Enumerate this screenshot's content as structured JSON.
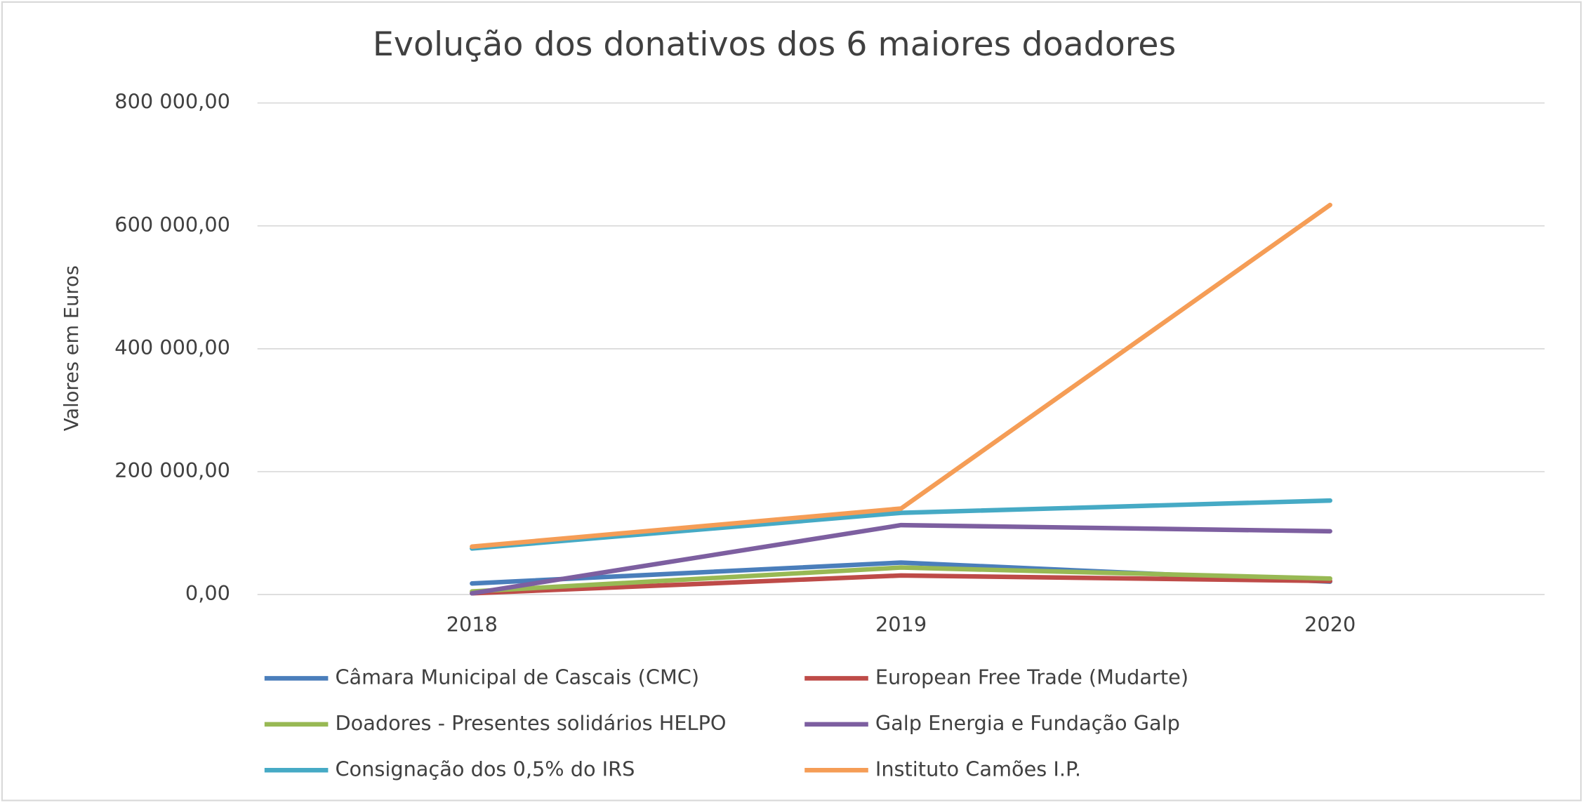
{
  "chart_data": {
    "type": "line",
    "title": "Evolução dos donativos dos 6 maiores doadores",
    "y_label": "Valores em Euros",
    "categories": [
      "2018",
      "2019",
      "2020"
    ],
    "series": [
      {
        "name": "Câmara Municipal de Cascais (CMC)",
        "color": "#4a7ebb",
        "values": [
          18000,
          52000,
          21000
        ]
      },
      {
        "name": "European Free Trade (Mudarte)",
        "color": "#be4b48",
        "values": [
          2000,
          31000,
          22000
        ]
      },
      {
        "name": "Doadores - Presentes solidários HELPO",
        "color": "#98b954",
        "values": [
          5000,
          44000,
          26000
        ]
      },
      {
        "name": "Galp Energia e Fundação Galp",
        "color": "#7d5fa0",
        "values": [
          2000,
          113000,
          103000
        ]
      },
      {
        "name": "Consignação dos 0,5% do IRS",
        "color": "#46aac5",
        "values": [
          75000,
          133000,
          153000
        ]
      },
      {
        "name": "Instituto Camões I.P.",
        "color": "#f59d56",
        "values": [
          78000,
          140000,
          634000
        ]
      }
    ],
    "ylim": [
      0,
      800000
    ],
    "yticks": [
      {
        "value": 0,
        "label": "0,00"
      },
      {
        "value": 200000,
        "label": "200 000,00"
      },
      {
        "value": 400000,
        "label": "400 000,00"
      },
      {
        "value": 600000,
        "label": "600 000,00"
      },
      {
        "value": 800000,
        "label": "800 000,00"
      }
    ],
    "grid": true,
    "legend": "bottom"
  }
}
